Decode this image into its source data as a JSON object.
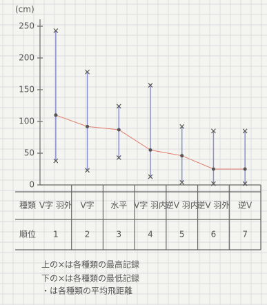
{
  "chart_data": {
    "type": "range",
    "y_label": "(cm)",
    "ylim": [
      0,
      250
    ],
    "yticks": [
      0,
      50,
      100,
      150,
      200,
      250
    ],
    "row_labels": [
      "種類",
      "順位"
    ],
    "categories": [
      "V字 羽外",
      "V字",
      "水平",
      "V字 羽内",
      "逆V 羽内",
      "逆V 羽外",
      "逆V"
    ],
    "ranks": [
      1,
      2,
      3,
      4,
      5,
      6,
      7
    ],
    "high": [
      243,
      178,
      124,
      157,
      92,
      85,
      85
    ],
    "low": [
      38,
      23,
      43,
      13,
      4,
      2,
      2
    ],
    "mean": [
      110,
      92,
      87,
      55,
      46,
      25,
      25
    ],
    "range_color": "#8a8fd0",
    "mean_line_color": "#e07a6a",
    "notes": [
      "上の×は各種類の最高記録",
      "下の×は各種類の最低記録",
      "・は各種類の平均飛距離"
    ]
  }
}
